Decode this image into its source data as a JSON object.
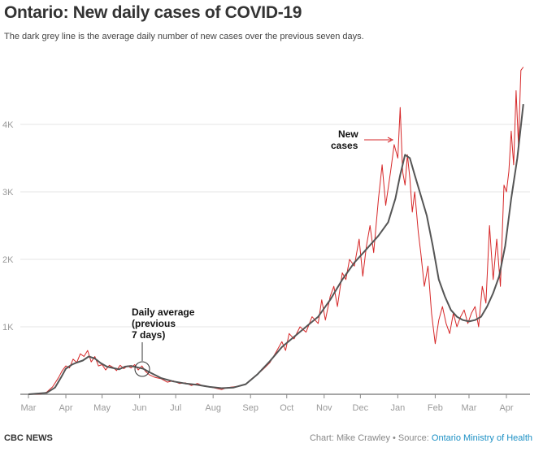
{
  "title": "Ontario: New daily cases of COVID-19",
  "subtitle": "The dark grey line is the average daily number of new cases over the previous seven days.",
  "footer": {
    "brand": "CBC NEWS",
    "credit": "Chart: Mike Crawley • Source: ",
    "source_link": "Ontario Ministry of Health"
  },
  "colors": {
    "cases": "#d62728",
    "average": "#555555",
    "grid": "#e6e6e6"
  },
  "chart_data": {
    "type": "line",
    "title": "Ontario: New daily cases of COVID-19",
    "xlabel": "",
    "ylabel": "",
    "x_unit": "days since 2020-03-01",
    "xlim": [
      0,
      412
    ],
    "ylim": [
      0,
      4900
    ],
    "yticks": [
      {
        "v": 1000,
        "label": "1K"
      },
      {
        "v": 2000,
        "label": "2K"
      },
      {
        "v": 3000,
        "label": "3K"
      },
      {
        "v": 4000,
        "label": "4K"
      }
    ],
    "xticks": [
      {
        "d": 0,
        "label": "Mar"
      },
      {
        "d": 31,
        "label": "Apr"
      },
      {
        "d": 61,
        "label": "May"
      },
      {
        "d": 92,
        "label": "Jun"
      },
      {
        "d": 122,
        "label": "Jul"
      },
      {
        "d": 153,
        "label": "Aug"
      },
      {
        "d": 184,
        "label": "Sep"
      },
      {
        "d": 214,
        "label": "Oct"
      },
      {
        "d": 245,
        "label": "Nov"
      },
      {
        "d": 275,
        "label": "Dec"
      },
      {
        "d": 306,
        "label": "Jan"
      },
      {
        "d": 337,
        "label": "Feb"
      },
      {
        "d": 365,
        "label": "Mar"
      },
      {
        "d": 396,
        "label": "Apr"
      }
    ],
    "series": [
      {
        "name": "New cases",
        "x": [
          0,
          10,
          15,
          20,
          25,
          28,
          31,
          34,
          37,
          40,
          43,
          46,
          49,
          52,
          55,
          58,
          61,
          64,
          67,
          70,
          73,
          76,
          79,
          82,
          85,
          88,
          91,
          94,
          97,
          100,
          105,
          110,
          115,
          120,
          125,
          130,
          135,
          140,
          145,
          150,
          155,
          160,
          165,
          170,
          175,
          180,
          185,
          190,
          195,
          200,
          205,
          210,
          213,
          216,
          220,
          225,
          230,
          235,
          240,
          243,
          246,
          250,
          253,
          256,
          260,
          263,
          266,
          270,
          274,
          277,
          280,
          283,
          286,
          290,
          293,
          296,
          300,
          303,
          306,
          308,
          310,
          312,
          314,
          316,
          318,
          320,
          323,
          325,
          328,
          331,
          334,
          337,
          340,
          343,
          346,
          349,
          352,
          355,
          358,
          361,
          364,
          367,
          370,
          373,
          376,
          379,
          382,
          385,
          388,
          391,
          394,
          396,
          398,
          400,
          402,
          404,
          406,
          408,
          410
        ],
        "values": [
          0,
          5,
          30,
          110,
          250,
          350,
          420,
          390,
          520,
          470,
          600,
          560,
          650,
          480,
          560,
          420,
          440,
          360,
          430,
          400,
          350,
          430,
          380,
          420,
          390,
          440,
          360,
          420,
          340,
          290,
          250,
          230,
          180,
          200,
          160,
          170,
          130,
          160,
          120,
          110,
          90,
          70,
          100,
          110,
          120,
          150,
          230,
          300,
          380,
          470,
          620,
          780,
          650,
          900,
          820,
          1000,
          920,
          1150,
          1050,
          1400,
          1100,
          1450,
          1600,
          1300,
          1800,
          1700,
          2000,
          1900,
          2300,
          1750,
          2200,
          2500,
          2100,
          2900,
          3400,
          2800,
          3300,
          3700,
          3500,
          4250,
          3300,
          3100,
          3550,
          3200,
          2700,
          3000,
          2400,
          2100,
          1600,
          1900,
          1200,
          750,
          1100,
          1300,
          1050,
          900,
          1200,
          1000,
          1150,
          1250,
          1050,
          1200,
          1300,
          1000,
          1600,
          1350,
          2500,
          1700,
          2300,
          1600,
          3100,
          3000,
          3300,
          3900,
          3400,
          4500,
          3700,
          4800,
          4850
        ]
      },
      {
        "name": "Daily average (previous 7 days)",
        "x": [
          0,
          15,
          22,
          27,
          31,
          36,
          40,
          45,
          50,
          55,
          60,
          65,
          70,
          75,
          80,
          85,
          90,
          95,
          100,
          110,
          120,
          130,
          140,
          150,
          160,
          170,
          180,
          190,
          200,
          210,
          220,
          230,
          240,
          250,
          260,
          270,
          280,
          290,
          298,
          304,
          308,
          312,
          316,
          320,
          325,
          330,
          335,
          340,
          345,
          350,
          355,
          360,
          365,
          370,
          375,
          380,
          385,
          390,
          395,
          400,
          405,
          410
        ],
        "values": [
          0,
          20,
          100,
          250,
          380,
          440,
          470,
          500,
          560,
          530,
          460,
          410,
          390,
          370,
          410,
          420,
          400,
          380,
          330,
          240,
          190,
          160,
          140,
          110,
          90,
          100,
          150,
          300,
          490,
          700,
          850,
          1000,
          1150,
          1400,
          1700,
          1950,
          2150,
          2350,
          2550,
          2900,
          3250,
          3550,
          3500,
          3250,
          2950,
          2650,
          2200,
          1700,
          1450,
          1250,
          1150,
          1100,
          1080,
          1100,
          1150,
          1300,
          1500,
          1750,
          2200,
          2900,
          3500,
          4300
        ]
      }
    ],
    "annotations": [
      {
        "text": [
          "New",
          "cases"
        ]
      },
      {
        "text": [
          "Daily average",
          "(previous",
          "7 days)"
        ]
      }
    ],
    "grid": true
  }
}
